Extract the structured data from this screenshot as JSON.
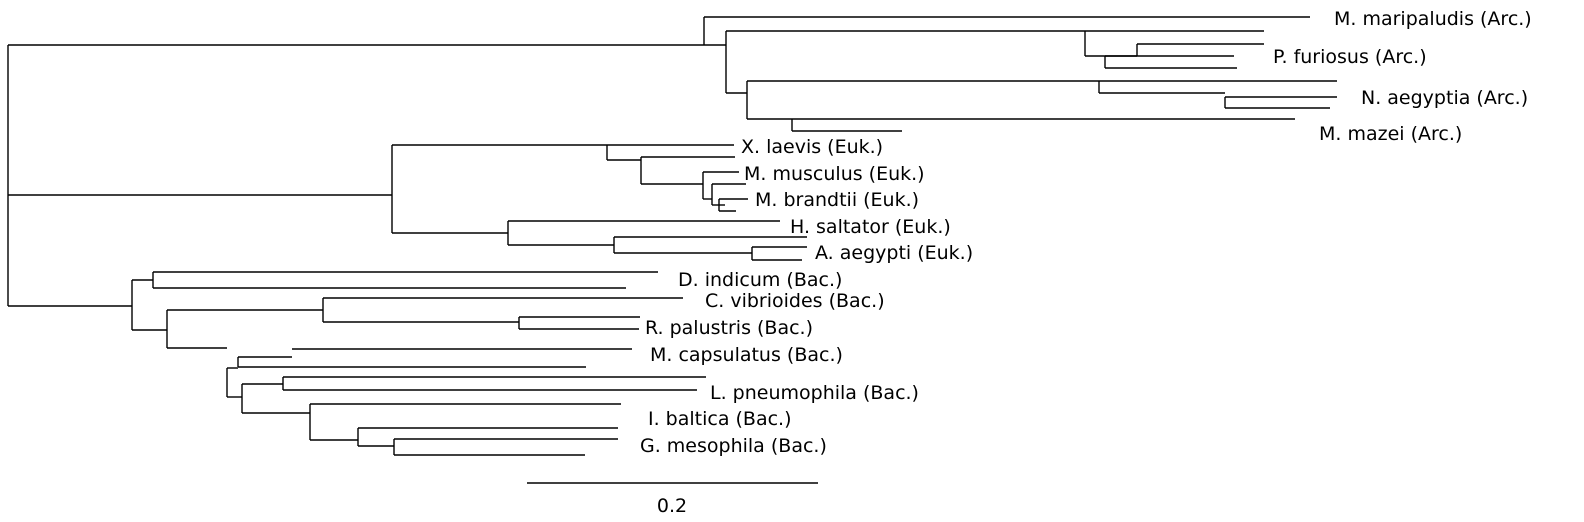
{
  "tree": {
    "leaves": [
      "M. maripaludis (Arc.)",
      "P. furiosus (Arc.)",
      "N. aegyptia (Arc.)",
      "M. mazei (Arc.)",
      "X. laevis (Euk.)",
      "M. musculus (Euk.)",
      "M. brandtii (Euk.)",
      "H. saltator (Euk.)",
      "A. aegypti (Euk.)",
      "D. indicum (Bac.)",
      "C. vibrioides (Bac.)",
      "R. palustris (Bac.)",
      "M. capsulatus (Bac.)",
      "L. pneumophila (Bac.)",
      "I. baltica (Bac.)",
      "G. mesophila (Bac.)"
    ],
    "scale_bar": {
      "label": "0.2",
      "length": 0.2
    },
    "colors": {
      "ink": "#000000",
      "background": "#ffffff"
    }
  }
}
